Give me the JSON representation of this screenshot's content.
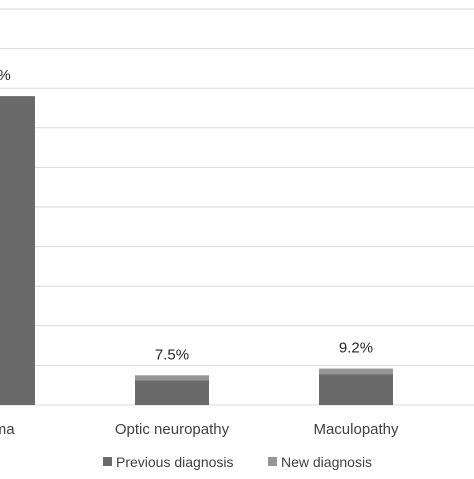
{
  "chart_data": {
    "type": "bar",
    "stacked": true,
    "categories": [
      "Glaucoma",
      "Optic neuropathy",
      "Maculopathy"
    ],
    "category_labels_visible": [
      "oma",
      "Optic neuropathy",
      "Maculopathy"
    ],
    "series": [
      {
        "name": "Previous diagnosis",
        "color": "#6a6a6a",
        "values": [
          78.0,
          6.2,
          7.8
        ]
      },
      {
        "name": "New diagnosis",
        "color": "#969696",
        "values": [
          0.0,
          1.3,
          1.4
        ]
      }
    ],
    "data_labels": [
      "%",
      "7.5%",
      "9.2%"
    ],
    "ylim": [
      0,
      100
    ],
    "grid": true,
    "legend": "bottom"
  }
}
